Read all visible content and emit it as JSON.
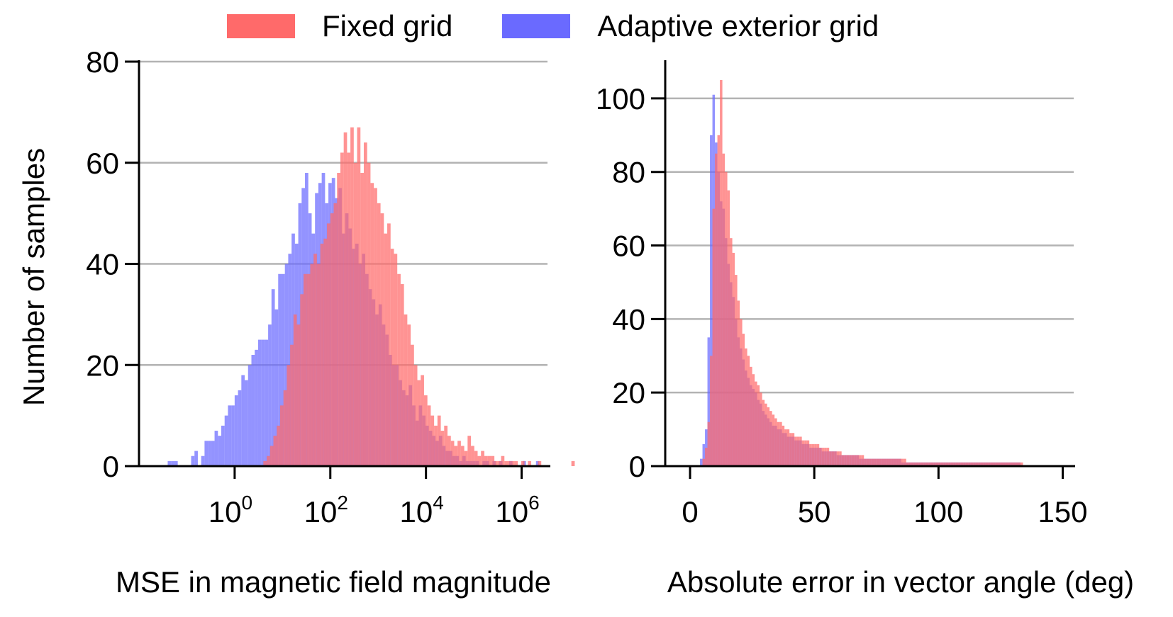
{
  "colors": {
    "fixed": "#ff6a6a",
    "adaptive": "#6a6aff",
    "axis": "#000000",
    "grid": "#b3b3b3"
  },
  "legend": {
    "fixed_label": "Fixed grid",
    "adaptive_label": "Adaptive exterior grid"
  },
  "chart_data": [
    {
      "type": "bar",
      "title": "",
      "xlabel": "MSE in magnetic field magnitude",
      "ylabel": "Number of samples",
      "xscale": "log10",
      "xlim_log10": [
        -2.0,
        6.6
      ],
      "ylim": [
        0,
        80
      ],
      "yticks": [
        "0",
        "20",
        "40",
        "60",
        "80"
      ],
      "xticks": [
        {
          "value_log10": 0,
          "base": "10",
          "exp": "0"
        },
        {
          "value_log10": 2,
          "base": "10",
          "exp": "2"
        },
        {
          "value_log10": 4,
          "base": "10",
          "exp": "4"
        },
        {
          "value_log10": 6,
          "base": "10",
          "exp": "6"
        }
      ],
      "grid": "y",
      "series": [
        {
          "name": "Adaptive exterior grid",
          "bin_start_log10": -1.4,
          "bin_width_log10": 0.07,
          "values": [
            1,
            1,
            1,
            0,
            0,
            0,
            0,
            2,
            3,
            0,
            2,
            5,
            5,
            5,
            7,
            6,
            8,
            10,
            12,
            12,
            14,
            15,
            18,
            17,
            20,
            22,
            23,
            25,
            25,
            25,
            28,
            35,
            31,
            38,
            38,
            40,
            42,
            46,
            44,
            52,
            55,
            58,
            50,
            46,
            54,
            56,
            58,
            52,
            56,
            57,
            53,
            55,
            46,
            50,
            47,
            43,
            44,
            40,
            42,
            38,
            35,
            33,
            30,
            32,
            28,
            26,
            22,
            20,
            20,
            17,
            15,
            14,
            16,
            12,
            9,
            12,
            10,
            8,
            7,
            6,
            5,
            6,
            4,
            3,
            3,
            2,
            2,
            1,
            2,
            1,
            1,
            1,
            1,
            0,
            1,
            1,
            0,
            1,
            0,
            1,
            0,
            0,
            1,
            0,
            0,
            0,
            1,
            0,
            0,
            0,
            1
          ]
        },
        {
          "name": "Fixed grid",
          "bin_start_log10": 0.6,
          "bin_width_log10": 0.07,
          "values": [
            1,
            2,
            4,
            6,
            8,
            12,
            15,
            20,
            24,
            30,
            28,
            34,
            38,
            38,
            40,
            42,
            40,
            44,
            45,
            48,
            50,
            52,
            58,
            62,
            66,
            62,
            67,
            60,
            67,
            58,
            64,
            60,
            56,
            55,
            52,
            50,
            46,
            48,
            43,
            42,
            38,
            36,
            30,
            28,
            24,
            20,
            17,
            18,
            14,
            12,
            10,
            8,
            10,
            7,
            8,
            6,
            5,
            4,
            5,
            4,
            3,
            6,
            4,
            3,
            2,
            3,
            2,
            2,
            2,
            1,
            1,
            2,
            1,
            1,
            1,
            1,
            0,
            1,
            0,
            1,
            0,
            0,
            1,
            0,
            0,
            0,
            0,
            0,
            0,
            0,
            0,
            0,
            1
          ]
        }
      ]
    },
    {
      "type": "bar",
      "title": "",
      "xlabel": "Absolute error in vector angle (deg)",
      "ylabel": "",
      "xlim": [
        -10,
        155
      ],
      "ylim": [
        0,
        110
      ],
      "yticks": [
        "0",
        "20",
        "40",
        "60",
        "80",
        "100"
      ],
      "xticks": [
        "0",
        "50",
        "100",
        "150"
      ],
      "grid": "y",
      "series": [
        {
          "name": "Adaptive exterior grid",
          "bin_start": 4.0,
          "bin_width": 1.0,
          "values": [
            2,
            6,
            10,
            35,
            90,
            101,
            88,
            80,
            72,
            70,
            62,
            55,
            50,
            46,
            40,
            35,
            32,
            29,
            26,
            24,
            22,
            21,
            20,
            18,
            17,
            15,
            14,
            13,
            12,
            11,
            11,
            10,
            10,
            9,
            9,
            8,
            8,
            8,
            7,
            7,
            7,
            6,
            6,
            6,
            5,
            5,
            5,
            5,
            5,
            4,
            4,
            4,
            4,
            4,
            4,
            3,
            3,
            3,
            3,
            3,
            3,
            3,
            3,
            3,
            2,
            2,
            2,
            2,
            2,
            2,
            2,
            2,
            2,
            2,
            2,
            2,
            2,
            2,
            2,
            2,
            2,
            1,
            1,
            1,
            1,
            1,
            1,
            1,
            1,
            1,
            1,
            1,
            1,
            1,
            1,
            1,
            1,
            1,
            1,
            1,
            1,
            1,
            1,
            1,
            1,
            1,
            1,
            1,
            1,
            1,
            1,
            1,
            1,
            1,
            1,
            1,
            1,
            1,
            1,
            1,
            1,
            1,
            1,
            1,
            1,
            1,
            1,
            1,
            1
          ]
        },
        {
          "name": "Fixed grid",
          "bin_start": 5.0,
          "bin_width": 1.0,
          "values": [
            2,
            5,
            12,
            30,
            70,
            85,
            90,
            105,
            85,
            80,
            75,
            62,
            58,
            52,
            45,
            40,
            36,
            32,
            30,
            27,
            25,
            23,
            22,
            20,
            18,
            17,
            16,
            15,
            14,
            13,
            12,
            12,
            11,
            10,
            10,
            9,
            9,
            8,
            8,
            8,
            7,
            7,
            7,
            6,
            6,
            6,
            6,
            5,
            5,
            5,
            5,
            4,
            4,
            4,
            4,
            4,
            3,
            3,
            3,
            3,
            3,
            3,
            3,
            3,
            3,
            2,
            2,
            2,
            2,
            2,
            2,
            2,
            2,
            2,
            2,
            2,
            2,
            2,
            2,
            2,
            2,
            2,
            1,
            1,
            1,
            1,
            1,
            1,
            1,
            1,
            1,
            1,
            1,
            1,
            1,
            1,
            1,
            1,
            1,
            1,
            1,
            1,
            1,
            1,
            1,
            1,
            1,
            1,
            1,
            1,
            1,
            1,
            1,
            1,
            1,
            1,
            1,
            1,
            1,
            1,
            1,
            1,
            1,
            1,
            1,
            1,
            1,
            1,
            1
          ]
        }
      ]
    }
  ]
}
